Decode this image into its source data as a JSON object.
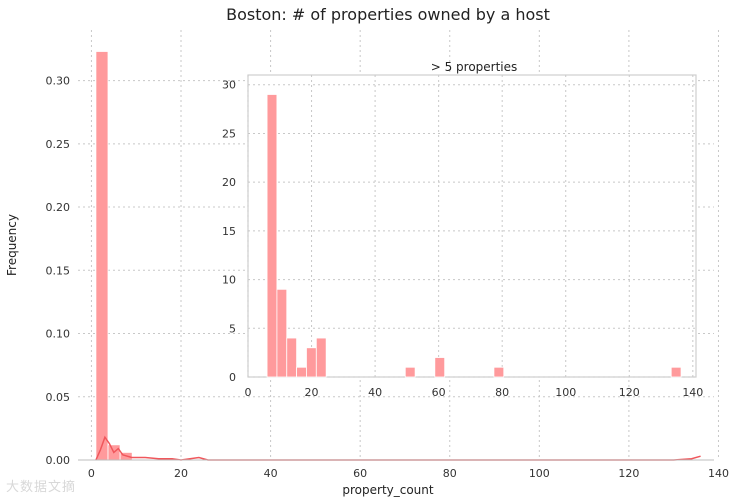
{
  "watermark": "大数据文摘",
  "chart_data": [
    {
      "type": "bar",
      "title": "Boston: # of properties owned by a host",
      "xlabel": "property_count",
      "ylabel": "Frequency",
      "xlim": [
        -3,
        139
      ],
      "ylim": [
        0,
        0.34
      ],
      "xticks": [
        0,
        20,
        40,
        60,
        80,
        100,
        120,
        140
      ],
      "yticks": [
        0.0,
        0.05,
        0.1,
        0.15,
        0.2,
        0.25,
        0.3
      ],
      "ytick_labels": [
        "0.00",
        "0.05",
        "0.10",
        "0.15",
        "0.20",
        "0.25",
        "0.30"
      ],
      "grid": true,
      "bins": [
        {
          "x0": 1,
          "x1": 3.7,
          "value": 0.323
        },
        {
          "x0": 3.7,
          "x1": 6.4,
          "value": 0.012
        },
        {
          "x0": 6.4,
          "x1": 9.1,
          "value": 0.006
        }
      ],
      "kde": [
        [
          1,
          0
        ],
        [
          2,
          0.008
        ],
        [
          3,
          0.018
        ],
        [
          4,
          0.013
        ],
        [
          5,
          0.006
        ],
        [
          6,
          0.009
        ],
        [
          7,
          0.004
        ],
        [
          8,
          0.003
        ],
        [
          9,
          0.002
        ],
        [
          10,
          0.002
        ],
        [
          12,
          0.002
        ],
        [
          15,
          0.001
        ],
        [
          18,
          0.001
        ],
        [
          20,
          0.0
        ],
        [
          22,
          0.001
        ],
        [
          24,
          0.002
        ],
        [
          26,
          0.0
        ],
        [
          30,
          0.0
        ],
        [
          50,
          0.0
        ],
        [
          70,
          0.0
        ],
        [
          80,
          0.0
        ],
        [
          100,
          0.0
        ],
        [
          120,
          0.0
        ],
        [
          130,
          0.0
        ],
        [
          134,
          0.001
        ],
        [
          136,
          0.003
        ]
      ]
    },
    {
      "type": "bar",
      "title": "> 5 properties",
      "xlim": [
        0,
        141
      ],
      "ylim": [
        0,
        31
      ],
      "xticks": [
        0,
        20,
        40,
        60,
        80,
        100,
        120,
        140
      ],
      "yticks": [
        0,
        5,
        10,
        15,
        20,
        25,
        30
      ],
      "grid": true,
      "bins": [
        {
          "x0": 6,
          "x1": 9.1,
          "value": 29
        },
        {
          "x0": 9.1,
          "x1": 12.2,
          "value": 9
        },
        {
          "x0": 12.2,
          "x1": 15.3,
          "value": 4
        },
        {
          "x0": 15.3,
          "x1": 18.4,
          "value": 1
        },
        {
          "x0": 18.4,
          "x1": 21.5,
          "value": 3
        },
        {
          "x0": 21.5,
          "x1": 24.6,
          "value": 4
        },
        {
          "x0": 49.5,
          "x1": 52.6,
          "value": 1
        },
        {
          "x0": 58.8,
          "x1": 61.9,
          "value": 2
        },
        {
          "x0": 77.4,
          "x1": 80.5,
          "value": 1
        },
        {
          "x0": 133.2,
          "x1": 136.3,
          "value": 1
        }
      ]
    }
  ]
}
